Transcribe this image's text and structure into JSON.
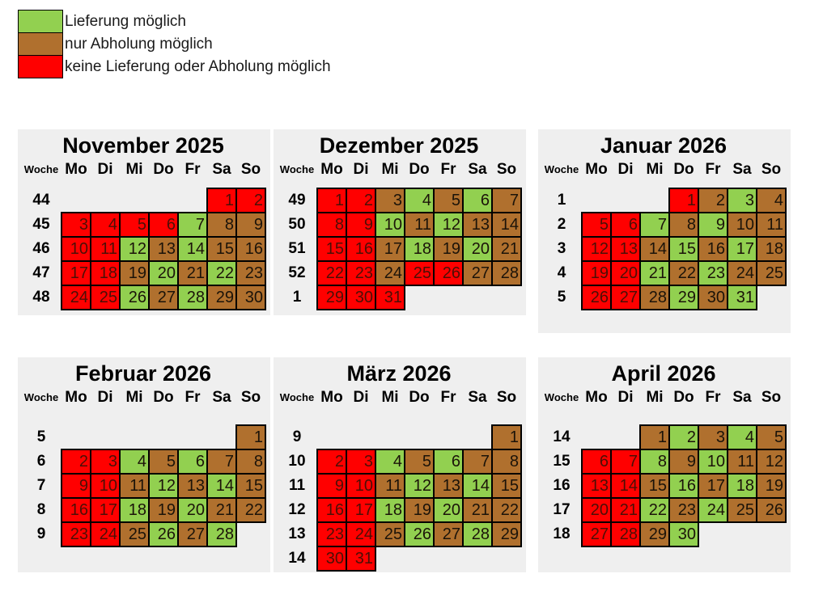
{
  "legend": {
    "items": [
      {
        "label": "Lieferung möglich",
        "key": "L"
      },
      {
        "label": "nur Abholung möglich",
        "key": "A"
      },
      {
        "label": "keine Lieferung oder Abholung möglich",
        "key": "N"
      }
    ]
  },
  "colors": {
    "cell": {
      "L": "#92d050",
      "A": "#b0702e",
      "N": "#ff0000"
    },
    "text": {
      "L": "#1b1309",
      "A": "#1b1309",
      "N": "#4c0f06"
    },
    "panel_bg": "#efefef",
    "border": "#000000"
  },
  "calendar": {
    "week_label": "Woche",
    "day_headers": [
      "Mo",
      "Di",
      "Mi",
      "Do",
      "Fr",
      "Sa",
      "So"
    ],
    "months": [
      {
        "title": "November 2025",
        "weeks": [
          {
            "week": "44",
            "start": 5,
            "days": [
              [
                1,
                "N"
              ],
              [
                2,
                "N"
              ]
            ]
          },
          {
            "week": "45",
            "start": 0,
            "days": [
              [
                3,
                "N"
              ],
              [
                4,
                "N"
              ],
              [
                5,
                "N"
              ],
              [
                6,
                "N"
              ],
              [
                7,
                "L"
              ],
              [
                8,
                "A"
              ],
              [
                9,
                "A"
              ]
            ]
          },
          {
            "week": "46",
            "start": 0,
            "days": [
              [
                10,
                "N"
              ],
              [
                11,
                "N"
              ],
              [
                12,
                "L"
              ],
              [
                13,
                "A"
              ],
              [
                14,
                "L"
              ],
              [
                15,
                "A"
              ],
              [
                16,
                "A"
              ]
            ]
          },
          {
            "week": "47",
            "start": 0,
            "days": [
              [
                17,
                "N"
              ],
              [
                18,
                "N"
              ],
              [
                19,
                "A"
              ],
              [
                20,
                "L"
              ],
              [
                21,
                "A"
              ],
              [
                22,
                "L"
              ],
              [
                23,
                "A"
              ]
            ]
          },
          {
            "week": "48",
            "start": 0,
            "days": [
              [
                24,
                "N"
              ],
              [
                25,
                "N"
              ],
              [
                26,
                "L"
              ],
              [
                27,
                "A"
              ],
              [
                28,
                "L"
              ],
              [
                29,
                "A"
              ],
              [
                30,
                "A"
              ]
            ]
          }
        ]
      },
      {
        "title": "Dezember 2025",
        "weeks": [
          {
            "week": "49",
            "start": 0,
            "days": [
              [
                1,
                "N"
              ],
              [
                2,
                "N"
              ],
              [
                3,
                "A"
              ],
              [
                4,
                "L"
              ],
              [
                5,
                "A"
              ],
              [
                6,
                "L"
              ],
              [
                7,
                "A"
              ]
            ]
          },
          {
            "week": "50",
            "start": 0,
            "days": [
              [
                8,
                "N"
              ],
              [
                9,
                "N"
              ],
              [
                10,
                "L"
              ],
              [
                11,
                "A"
              ],
              [
                12,
                "L"
              ],
              [
                13,
                "A"
              ],
              [
                14,
                "A"
              ]
            ]
          },
          {
            "week": "51",
            "start": 0,
            "days": [
              [
                15,
                "N"
              ],
              [
                16,
                "N"
              ],
              [
                17,
                "A"
              ],
              [
                18,
                "L"
              ],
              [
                19,
                "A"
              ],
              [
                20,
                "L"
              ],
              [
                21,
                "A"
              ]
            ]
          },
          {
            "week": "52",
            "start": 0,
            "days": [
              [
                22,
                "N"
              ],
              [
                23,
                "N"
              ],
              [
                24,
                "A"
              ],
              [
                25,
                "N"
              ],
              [
                26,
                "N"
              ],
              [
                27,
                "A"
              ],
              [
                28,
                "A"
              ]
            ]
          },
          {
            "week": "1",
            "start": 0,
            "days": [
              [
                29,
                "N"
              ],
              [
                30,
                "N"
              ],
              [
                31,
                "N"
              ]
            ]
          }
        ]
      },
      {
        "title": "Januar 2026",
        "weeks": [
          {
            "week": "1",
            "start": 3,
            "days": [
              [
                1,
                "N"
              ],
              [
                2,
                "A"
              ],
              [
                3,
                "L"
              ],
              [
                4,
                "A"
              ]
            ]
          },
          {
            "week": "2",
            "start": 0,
            "days": [
              [
                5,
                "N"
              ],
              [
                6,
                "N"
              ],
              [
                7,
                "L"
              ],
              [
                8,
                "A"
              ],
              [
                9,
                "L"
              ],
              [
                10,
                "A"
              ],
              [
                11,
                "A"
              ]
            ]
          },
          {
            "week": "3",
            "start": 0,
            "days": [
              [
                12,
                "N"
              ],
              [
                13,
                "N"
              ],
              [
                14,
                "A"
              ],
              [
                15,
                "L"
              ],
              [
                16,
                "A"
              ],
              [
                17,
                "L"
              ],
              [
                18,
                "A"
              ]
            ]
          },
          {
            "week": "4",
            "start": 0,
            "days": [
              [
                19,
                "N"
              ],
              [
                20,
                "N"
              ],
              [
                21,
                "L"
              ],
              [
                22,
                "A"
              ],
              [
                23,
                "L"
              ],
              [
                24,
                "A"
              ],
              [
                25,
                "A"
              ]
            ]
          },
          {
            "week": "5",
            "start": 0,
            "days": [
              [
                26,
                "N"
              ],
              [
                27,
                "N"
              ],
              [
                28,
                "A"
              ],
              [
                29,
                "L"
              ],
              [
                30,
                "A"
              ],
              [
                31,
                "L"
              ]
            ]
          }
        ]
      },
      {
        "title": "Februar 2026",
        "weeks": [
          {
            "week": "5",
            "start": 6,
            "days": [
              [
                1,
                "A"
              ]
            ]
          },
          {
            "week": "6",
            "start": 0,
            "days": [
              [
                2,
                "N"
              ],
              [
                3,
                "N"
              ],
              [
                4,
                "L"
              ],
              [
                5,
                "A"
              ],
              [
                6,
                "L"
              ],
              [
                7,
                "A"
              ],
              [
                8,
                "A"
              ]
            ]
          },
          {
            "week": "7",
            "start": 0,
            "days": [
              [
                9,
                "N"
              ],
              [
                10,
                "N"
              ],
              [
                11,
                "A"
              ],
              [
                12,
                "L"
              ],
              [
                13,
                "A"
              ],
              [
                14,
                "L"
              ],
              [
                15,
                "A"
              ]
            ]
          },
          {
            "week": "8",
            "start": 0,
            "days": [
              [
                16,
                "N"
              ],
              [
                17,
                "N"
              ],
              [
                18,
                "L"
              ],
              [
                19,
                "A"
              ],
              [
                20,
                "L"
              ],
              [
                21,
                "A"
              ],
              [
                22,
                "A"
              ]
            ]
          },
          {
            "week": "9",
            "start": 0,
            "days": [
              [
                23,
                "N"
              ],
              [
                24,
                "N"
              ],
              [
                25,
                "A"
              ],
              [
                26,
                "L"
              ],
              [
                27,
                "A"
              ],
              [
                28,
                "L"
              ]
            ]
          }
        ]
      },
      {
        "title": "März 2026",
        "weeks": [
          {
            "week": "9",
            "start": 6,
            "days": [
              [
                1,
                "A"
              ]
            ]
          },
          {
            "week": "10",
            "start": 0,
            "days": [
              [
                2,
                "N"
              ],
              [
                3,
                "N"
              ],
              [
                4,
                "L"
              ],
              [
                5,
                "A"
              ],
              [
                6,
                "L"
              ],
              [
                7,
                "A"
              ],
              [
                8,
                "A"
              ]
            ]
          },
          {
            "week": "11",
            "start": 0,
            "days": [
              [
                9,
                "N"
              ],
              [
                10,
                "N"
              ],
              [
                11,
                "A"
              ],
              [
                12,
                "L"
              ],
              [
                13,
                "A"
              ],
              [
                14,
                "L"
              ],
              [
                15,
                "A"
              ]
            ]
          },
          {
            "week": "12",
            "start": 0,
            "days": [
              [
                16,
                "N"
              ],
              [
                17,
                "N"
              ],
              [
                18,
                "L"
              ],
              [
                19,
                "A"
              ],
              [
                20,
                "L"
              ],
              [
                21,
                "A"
              ],
              [
                22,
                "A"
              ]
            ]
          },
          {
            "week": "13",
            "start": 0,
            "days": [
              [
                23,
                "N"
              ],
              [
                24,
                "N"
              ],
              [
                25,
                "A"
              ],
              [
                26,
                "L"
              ],
              [
                27,
                "A"
              ],
              [
                28,
                "L"
              ],
              [
                29,
                "A"
              ]
            ]
          },
          {
            "week": "14",
            "start": 0,
            "days": [
              [
                30,
                "N"
              ],
              [
                31,
                "N"
              ]
            ]
          }
        ]
      },
      {
        "title": "April 2026",
        "weeks": [
          {
            "week": "14",
            "start": 2,
            "days": [
              [
                1,
                "A"
              ],
              [
                2,
                "L"
              ],
              [
                3,
                "A"
              ],
              [
                4,
                "L"
              ],
              [
                5,
                "A"
              ]
            ]
          },
          {
            "week": "15",
            "start": 0,
            "days": [
              [
                6,
                "N"
              ],
              [
                7,
                "N"
              ],
              [
                8,
                "L"
              ],
              [
                9,
                "A"
              ],
              [
                10,
                "L"
              ],
              [
                11,
                "A"
              ],
              [
                12,
                "A"
              ]
            ]
          },
          {
            "week": "16",
            "start": 0,
            "days": [
              [
                13,
                "N"
              ],
              [
                14,
                "N"
              ],
              [
                15,
                "A"
              ],
              [
                16,
                "L"
              ],
              [
                17,
                "A"
              ],
              [
                18,
                "L"
              ],
              [
                19,
                "A"
              ]
            ]
          },
          {
            "week": "17",
            "start": 0,
            "days": [
              [
                20,
                "N"
              ],
              [
                21,
                "N"
              ],
              [
                22,
                "L"
              ],
              [
                23,
                "A"
              ],
              [
                24,
                "L"
              ],
              [
                25,
                "A"
              ],
              [
                26,
                "A"
              ]
            ]
          },
          {
            "week": "18",
            "start": 0,
            "days": [
              [
                27,
                "N"
              ],
              [
                28,
                "N"
              ],
              [
                29,
                "A"
              ],
              [
                30,
                "L"
              ]
            ]
          }
        ]
      }
    ]
  }
}
